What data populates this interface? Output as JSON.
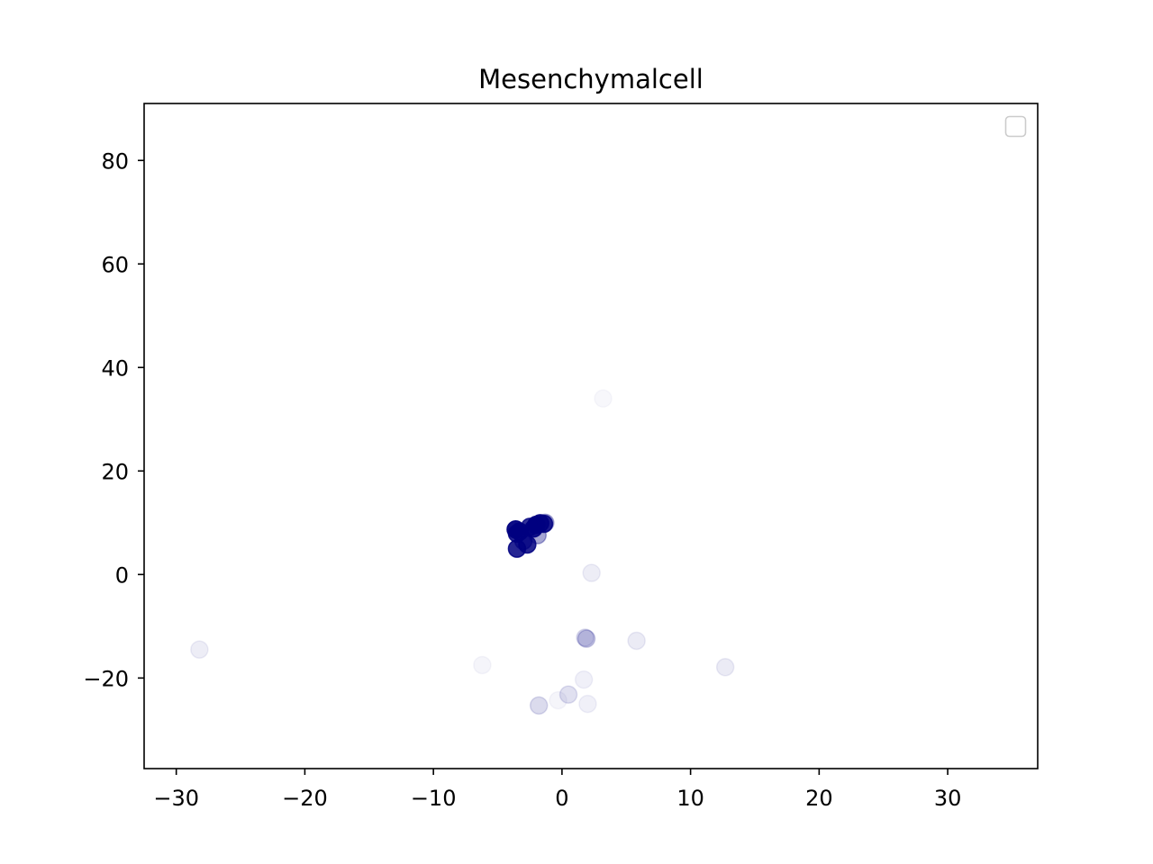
{
  "chart_data": {
    "type": "scatter",
    "title": "Mesenchymalcell",
    "xlabel": "",
    "ylabel": "",
    "xlim": [
      -32.5,
      37
    ],
    "ylim": [
      -37.5,
      91
    ],
    "xticks": [
      -30,
      -20,
      -10,
      0,
      10,
      20,
      30
    ],
    "xtick_labels": [
      "−30",
      "−20",
      "−10",
      "0",
      "10",
      "20",
      "30"
    ],
    "yticks": [
      -20,
      0,
      20,
      40,
      60,
      80
    ],
    "ytick_labels": [
      "−20",
      "0",
      "20",
      "40",
      "60",
      "80"
    ],
    "grid": false,
    "legend": {
      "placement": "top-right",
      "entries": []
    },
    "marker_color": "#000080",
    "points": [
      {
        "x": -3.6,
        "y": 8.7,
        "alpha": 0.95
      },
      {
        "x": -3.3,
        "y": 8.3,
        "alpha": 0.9
      },
      {
        "x": -3.5,
        "y": 7.9,
        "alpha": 0.85
      },
      {
        "x": -2.0,
        "y": 9.6,
        "alpha": 0.95
      },
      {
        "x": -1.7,
        "y": 9.9,
        "alpha": 0.9
      },
      {
        "x": -1.4,
        "y": 9.8,
        "alpha": 0.85
      },
      {
        "x": -2.2,
        "y": 8.9,
        "alpha": 0.9
      },
      {
        "x": -2.5,
        "y": 9.2,
        "alpha": 0.8
      },
      {
        "x": -1.9,
        "y": 7.6,
        "alpha": 0.35
      },
      {
        "x": -1.3,
        "y": 10.0,
        "alpha": 0.3
      },
      {
        "x": -2.7,
        "y": 5.8,
        "alpha": 0.85
      },
      {
        "x": -3.5,
        "y": 5.0,
        "alpha": 0.85
      },
      {
        "x": -3.0,
        "y": 6.5,
        "alpha": 0.6
      },
      {
        "x": 2.3,
        "y": 0.3,
        "alpha": 0.07
      },
      {
        "x": 3.2,
        "y": 34.0,
        "alpha": 0.03
      },
      {
        "x": 1.9,
        "y": -12.4,
        "alpha": 0.2
      },
      {
        "x": 1.8,
        "y": -12.2,
        "alpha": 0.12
      },
      {
        "x": 5.8,
        "y": -12.8,
        "alpha": 0.08
      },
      {
        "x": 12.7,
        "y": -17.9,
        "alpha": 0.08
      },
      {
        "x": -28.2,
        "y": -14.5,
        "alpha": 0.07
      },
      {
        "x": -6.2,
        "y": -17.5,
        "alpha": 0.04
      },
      {
        "x": 1.7,
        "y": -20.3,
        "alpha": 0.06
      },
      {
        "x": 0.5,
        "y": -23.2,
        "alpha": 0.12
      },
      {
        "x": -1.8,
        "y": -25.3,
        "alpha": 0.14
      },
      {
        "x": 2.0,
        "y": -25.0,
        "alpha": 0.06
      },
      {
        "x": -0.3,
        "y": -24.3,
        "alpha": 0.04
      }
    ]
  }
}
